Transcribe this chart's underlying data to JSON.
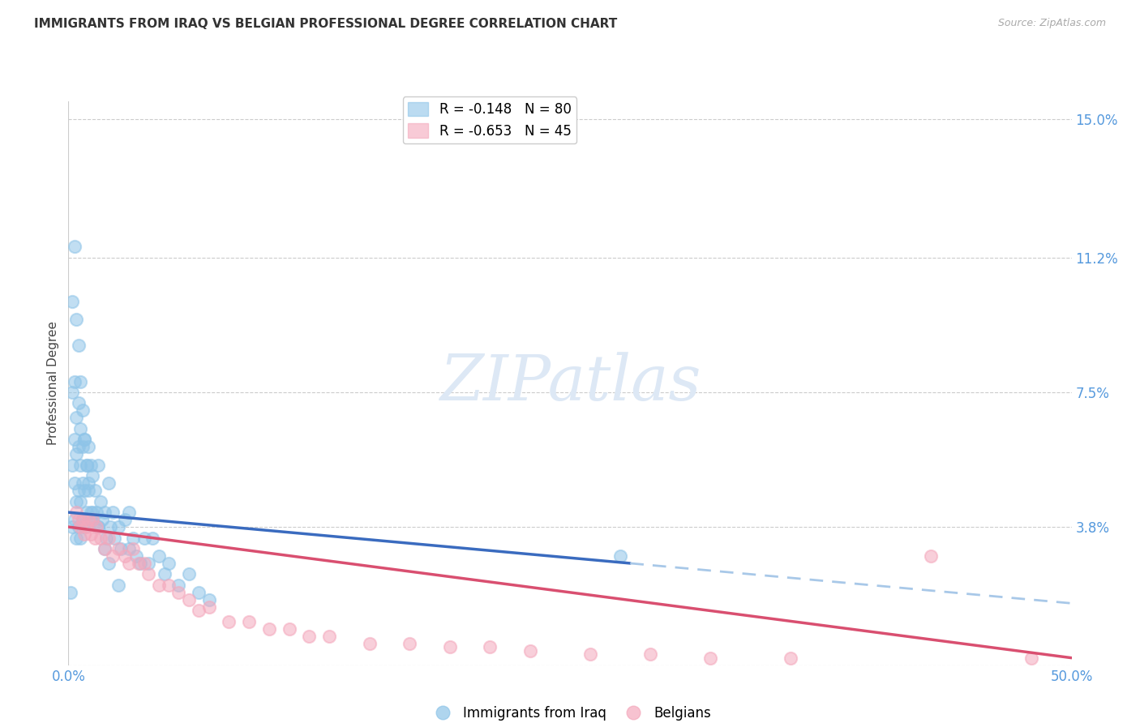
{
  "title": "IMMIGRANTS FROM IRAQ VS BELGIAN PROFESSIONAL DEGREE CORRELATION CHART",
  "source": "Source: ZipAtlas.com",
  "ylabel": "Professional Degree",
  "xlim": [
    0.0,
    0.5
  ],
  "ylim": [
    0.0,
    0.155
  ],
  "ytick_labels_right": [
    "15.0%",
    "11.2%",
    "7.5%",
    "3.8%",
    ""
  ],
  "ytick_positions_right": [
    0.15,
    0.112,
    0.075,
    0.038,
    0.0
  ],
  "color_iraq": "#8ec4e8",
  "color_belgian": "#f4a8bc",
  "color_trendline_iraq": "#3a6bbf",
  "color_trendline_belgian": "#d94f70",
  "color_trendline_iraq_dashed": "#a8c8e8",
  "background_color": "#ffffff",
  "iraq_r": "-0.148",
  "iraq_n": "80",
  "belgian_r": "-0.653",
  "belgian_n": "45",
  "iraq_trendline_start_x": 0.0,
  "iraq_trendline_start_y": 0.042,
  "iraq_trendline_solid_end_x": 0.28,
  "iraq_trendline_solid_end_y": 0.028,
  "iraq_trendline_dashed_end_x": 0.5,
  "iraq_trendline_dashed_end_y": 0.017,
  "belgian_trendline_start_x": 0.0,
  "belgian_trendline_start_y": 0.038,
  "belgian_trendline_end_x": 0.5,
  "belgian_trendline_end_y": 0.002,
  "iraq_scatter_x": [
    0.001,
    0.002,
    0.002,
    0.002,
    0.003,
    0.003,
    0.003,
    0.003,
    0.004,
    0.004,
    0.004,
    0.004,
    0.005,
    0.005,
    0.005,
    0.005,
    0.006,
    0.006,
    0.006,
    0.006,
    0.007,
    0.007,
    0.007,
    0.008,
    0.008,
    0.008,
    0.009,
    0.009,
    0.01,
    0.01,
    0.01,
    0.011,
    0.011,
    0.012,
    0.012,
    0.013,
    0.014,
    0.015,
    0.015,
    0.016,
    0.017,
    0.018,
    0.019,
    0.02,
    0.021,
    0.022,
    0.023,
    0.025,
    0.026,
    0.028,
    0.03,
    0.032,
    0.034,
    0.036,
    0.038,
    0.04,
    0.042,
    0.045,
    0.048,
    0.05,
    0.055,
    0.06,
    0.065,
    0.07,
    0.002,
    0.003,
    0.004,
    0.005,
    0.006,
    0.007,
    0.008,
    0.009,
    0.01,
    0.012,
    0.015,
    0.018,
    0.02,
    0.025,
    0.275,
    0.03
  ],
  "iraq_scatter_y": [
    0.02,
    0.075,
    0.055,
    0.038,
    0.078,
    0.062,
    0.05,
    0.04,
    0.068,
    0.058,
    0.045,
    0.035,
    0.072,
    0.06,
    0.048,
    0.038,
    0.065,
    0.055,
    0.045,
    0.035,
    0.06,
    0.05,
    0.04,
    0.062,
    0.048,
    0.038,
    0.055,
    0.042,
    0.06,
    0.05,
    0.04,
    0.055,
    0.042,
    0.052,
    0.04,
    0.048,
    0.042,
    0.055,
    0.038,
    0.045,
    0.04,
    0.042,
    0.035,
    0.05,
    0.038,
    0.042,
    0.035,
    0.038,
    0.032,
    0.04,
    0.032,
    0.035,
    0.03,
    0.028,
    0.035,
    0.028,
    0.035,
    0.03,
    0.025,
    0.028,
    0.022,
    0.025,
    0.02,
    0.018,
    0.1,
    0.115,
    0.095,
    0.088,
    0.078,
    0.07,
    0.062,
    0.055,
    0.048,
    0.042,
    0.038,
    0.032,
    0.028,
    0.022,
    0.03,
    0.042
  ],
  "belgian_scatter_x": [
    0.004,
    0.005,
    0.006,
    0.007,
    0.008,
    0.009,
    0.01,
    0.011,
    0.012,
    0.013,
    0.014,
    0.016,
    0.018,
    0.02,
    0.022,
    0.025,
    0.028,
    0.03,
    0.032,
    0.035,
    0.038,
    0.04,
    0.045,
    0.05,
    0.055,
    0.06,
    0.065,
    0.07,
    0.08,
    0.09,
    0.1,
    0.11,
    0.12,
    0.13,
    0.15,
    0.17,
    0.19,
    0.21,
    0.23,
    0.26,
    0.29,
    0.32,
    0.36,
    0.43,
    0.48
  ],
  "belgian_scatter_y": [
    0.042,
    0.04,
    0.038,
    0.04,
    0.036,
    0.038,
    0.04,
    0.036,
    0.04,
    0.035,
    0.038,
    0.035,
    0.032,
    0.035,
    0.03,
    0.032,
    0.03,
    0.028,
    0.032,
    0.028,
    0.028,
    0.025,
    0.022,
    0.022,
    0.02,
    0.018,
    0.015,
    0.016,
    0.012,
    0.012,
    0.01,
    0.01,
    0.008,
    0.008,
    0.006,
    0.006,
    0.005,
    0.005,
    0.004,
    0.003,
    0.003,
    0.002,
    0.002,
    0.03,
    0.002
  ]
}
